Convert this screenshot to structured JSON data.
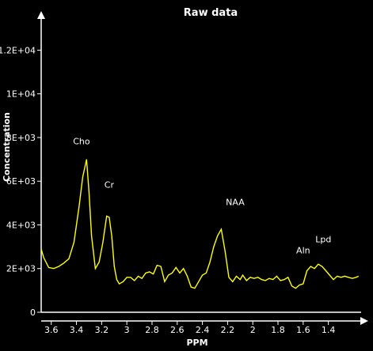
{
  "chart_data": {
    "type": "line",
    "title": "Raw data",
    "xlabel": "PPM",
    "ylabel": "Concentration",
    "x_reversed": true,
    "xlim": [
      3.68,
      1.14
    ],
    "ylim": [
      0,
      13500
    ],
    "x_ticks": [
      {
        "value": 3.6,
        "label": "3.6"
      },
      {
        "value": 3.4,
        "label": "3.4"
      },
      {
        "value": 3.2,
        "label": "3.2"
      },
      {
        "value": 3.0,
        "label": "3"
      },
      {
        "value": 2.8,
        "label": "2.8"
      },
      {
        "value": 2.6,
        "label": "2.6"
      },
      {
        "value": 2.4,
        "label": "2.4"
      },
      {
        "value": 2.2,
        "label": "2.2"
      },
      {
        "value": 2.0,
        "label": "2"
      },
      {
        "value": 1.8,
        "label": "1.8"
      },
      {
        "value": 1.6,
        "label": "1.6"
      },
      {
        "value": 1.4,
        "label": "1.4"
      }
    ],
    "y_ticks": [
      {
        "value": 0,
        "label": "0"
      },
      {
        "value": 2000,
        "label": "2E+03"
      },
      {
        "value": 4000,
        "label": "4E+03"
      },
      {
        "value": 6000,
        "label": "6E+03"
      },
      {
        "value": 8000,
        "label": "8E+03"
      },
      {
        "value": 10000,
        "label": "1E+04"
      },
      {
        "value": 12000,
        "label": "1.2E+04"
      }
    ],
    "peaks": [
      {
        "label": "Cho",
        "x": 3.36,
        "y": 7700
      },
      {
        "label": "Cr",
        "x": 3.14,
        "y": 5700
      },
      {
        "label": "NAA",
        "x": 2.14,
        "y": 4900
      },
      {
        "label": "Aln",
        "x": 1.6,
        "y": 2700
      },
      {
        "label": "Lpd",
        "x": 1.44,
        "y": 3200
      }
    ],
    "colors": {
      "background": "#000000",
      "line": "#ffff00",
      "axis": "#ffffff",
      "text": "#ffffff"
    },
    "series": [
      {
        "x": [
          3.68,
          3.66,
          3.62,
          3.58,
          3.54,
          3.5,
          3.46,
          3.42,
          3.38,
          3.35,
          3.32,
          3.3,
          3.28,
          3.25,
          3.22,
          3.19,
          3.16,
          3.14,
          3.12,
          3.1,
          3.08,
          3.06,
          3.03,
          3.0,
          2.97,
          2.94,
          2.91,
          2.88,
          2.85,
          2.82,
          2.79,
          2.76,
          2.73,
          2.7,
          2.67,
          2.64,
          2.61,
          2.58,
          2.55,
          2.52,
          2.49,
          2.46,
          2.43,
          2.4,
          2.37,
          2.34,
          2.31,
          2.28,
          2.25,
          2.22,
          2.19,
          2.16,
          2.13,
          2.1,
          2.08,
          2.05,
          2.02,
          1.99,
          1.96,
          1.93,
          1.9,
          1.87,
          1.84,
          1.81,
          1.78,
          1.75,
          1.72,
          1.69,
          1.66,
          1.63,
          1.6,
          1.57,
          1.54,
          1.51,
          1.48,
          1.45,
          1.42,
          1.39,
          1.36,
          1.33,
          1.3,
          1.27,
          1.24,
          1.21,
          1.18,
          1.16
        ],
        "y": [
          2900,
          2500,
          2050,
          2000,
          2100,
          2250,
          2450,
          3200,
          4800,
          6200,
          7000,
          5500,
          3500,
          2000,
          2300,
          3200,
          4400,
          4350,
          3500,
          2100,
          1500,
          1300,
          1400,
          1600,
          1600,
          1450,
          1650,
          1550,
          1800,
          1850,
          1750,
          2150,
          2100,
          1400,
          1700,
          1800,
          2050,
          1800,
          2000,
          1650,
          1150,
          1100,
          1400,
          1700,
          1800,
          2300,
          3000,
          3500,
          3800,
          2800,
          1600,
          1400,
          1650,
          1500,
          1700,
          1450,
          1600,
          1550,
          1600,
          1500,
          1450,
          1550,
          1500,
          1650,
          1450,
          1500,
          1600,
          1200,
          1100,
          1250,
          1300,
          1900,
          2100,
          2000,
          2200,
          2100,
          1900,
          1700,
          1500,
          1650,
          1600,
          1650,
          1600,
          1550,
          1600,
          1650
        ]
      }
    ]
  }
}
